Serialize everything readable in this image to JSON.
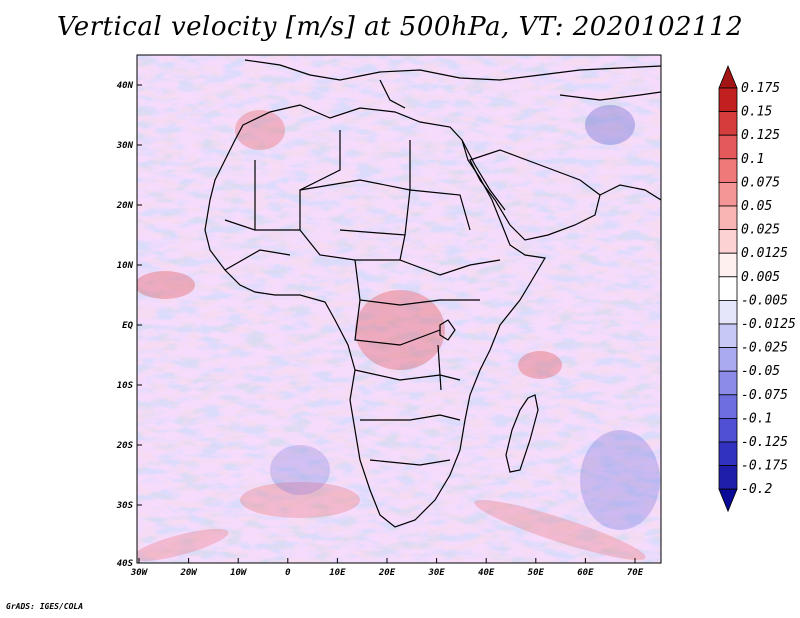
{
  "title": "Vertical velocity [m/s] at 500hPa, VT: 2020102112",
  "credit": "GrADS: IGES/COLA",
  "map": {
    "lon_labels": [
      "30W",
      "20W",
      "10W",
      "0",
      "10E",
      "20E",
      "30E",
      "40E",
      "50E",
      "60E",
      "70E"
    ],
    "lat_labels": [
      "40N",
      "30N",
      "20N",
      "10N",
      "EQ",
      "10S",
      "20S",
      "30S",
      "40S"
    ]
  },
  "colorbar": {
    "levels": [
      "0.175",
      "0.15",
      "0.125",
      "0.1",
      "0.075",
      "0.05",
      "0.025",
      "0.0125",
      "0.005",
      "-0.005",
      "-0.0125",
      "-0.025",
      "-0.05",
      "-0.075",
      "-0.1",
      "-0.125",
      "-0.175",
      "-0.2"
    ],
    "colors": [
      "#a51414",
      "#c22020",
      "#d53c3c",
      "#e45a5a",
      "#ef7878",
      "#f59696",
      "#f9b4b4",
      "#fcd2d2",
      "#fff0f0",
      "#ffffff",
      "#e6e6fa",
      "#c8c8f5",
      "#aaaaf0",
      "#8c8ce8",
      "#6e6ee0",
      "#5050d4",
      "#3232c0",
      "#1e1eaa",
      "#0a0a96"
    ]
  }
}
